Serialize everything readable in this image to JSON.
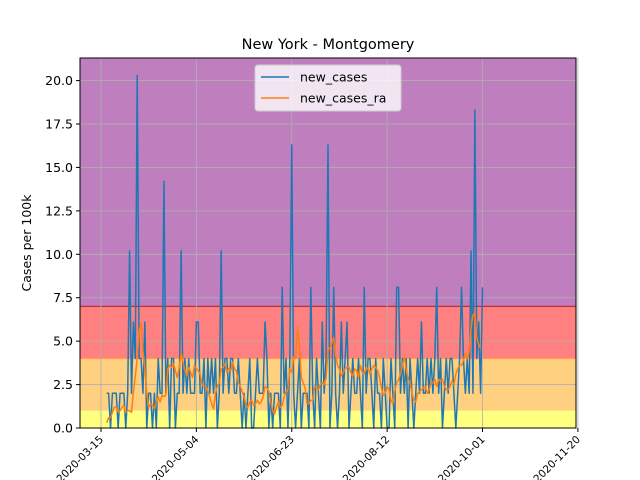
{
  "chart_data": {
    "type": "line",
    "title": "New York - Montgomery",
    "xlabel": "",
    "ylabel": "Cases per 100k",
    "xlim": [
      "2020-03-04",
      "2020-11-19"
    ],
    "ylim": [
      0,
      21.3
    ],
    "grid": true,
    "legend_position": "top-center",
    "xticks": [
      "2020-03-15",
      "2020-05-04",
      "2020-06-23",
      "2020-08-12",
      "2020-10-01",
      "2020-11-20"
    ],
    "yticks": [
      "0.0",
      "2.5",
      "5.0",
      "7.5",
      "10.0",
      "12.5",
      "15.0",
      "17.5",
      "20.0"
    ],
    "bands": [
      {
        "from": 0,
        "to": 1,
        "color": "#ffff80"
      },
      {
        "from": 1,
        "to": 4,
        "color": "#ffd080"
      },
      {
        "from": 4,
        "to": 7,
        "color": "#ff8080"
      },
      {
        "from": 7,
        "to": 21.3,
        "color": "#bf7fbf"
      }
    ],
    "band_lines": [
      {
        "y": 7,
        "color": "#c03030"
      },
      {
        "y": 4,
        "color": "#ff9a50"
      }
    ],
    "series": [
      {
        "name": "new_cases",
        "color": "#1f77b4",
        "x_start": "2020-03-18",
        "step_days": 1,
        "values": [
          2.0,
          2.0,
          0,
          2.0,
          2.0,
          2.0,
          0,
          2.0,
          2.0,
          2.0,
          0,
          2.0,
          10.2,
          2.0,
          6.1,
          4.0,
          20.3,
          4.0,
          4.0,
          2.0,
          6.1,
          0,
          2.0,
          2.0,
          0,
          2.0,
          0,
          4.0,
          2.0,
          2.0,
          14.2,
          2.0,
          4.0,
          0,
          4.0,
          4.0,
          0,
          2.0,
          2.0,
          10.2,
          2.0,
          4.0,
          2.0,
          4.0,
          2.0,
          2.0,
          2.0,
          6.1,
          6.1,
          2.0,
          2.0,
          4.0,
          0,
          4.0,
          2.0,
          4.0,
          2.0,
          4.0,
          0,
          2.0,
          10.2,
          2.0,
          4.0,
          4.0,
          2.0,
          4.0,
          4.0,
          2.0,
          2.0,
          4.0,
          2.0,
          0,
          2.0,
          0,
          2.0,
          4.0,
          0,
          0,
          2.0,
          4.0,
          2.0,
          2.0,
          2.0,
          6.1,
          4.0,
          0,
          2.0,
          0,
          2.0,
          2.0,
          2.0,
          0,
          8.1,
          2.0,
          4.0,
          0,
          4.0,
          16.3,
          2.0,
          0,
          2.0,
          4.0,
          0,
          2.0,
          2.0,
          2.0,
          0,
          8.1,
          2.0,
          0,
          4.0,
          2.0,
          0,
          6.1,
          2.0,
          4.0,
          16.3,
          0,
          2.0,
          8.1,
          2.0,
          0,
          2.0,
          6.1,
          2.0,
          4.0,
          6.1,
          0,
          2.0,
          4.0,
          2.0,
          2.0,
          4.0,
          2.0,
          0,
          8.1,
          2.0,
          4.0,
          4.0,
          2.0,
          0,
          4.0,
          2.0,
          2.0,
          0,
          4.0,
          2.0,
          0,
          0,
          4.0,
          2.0,
          0,
          8.1,
          8.1,
          2.0,
          4.0,
          2.0,
          4.0,
          0,
          4.0,
          2.0,
          0,
          2.0,
          4.0,
          2.0,
          6.1,
          2.0,
          2.0,
          4.0,
          2.0,
          4.0,
          2.0,
          4.0,
          8.1,
          2.0,
          4.0,
          0,
          2.0,
          4.0,
          2.0,
          4.0,
          4.0,
          2.0,
          0,
          2.0,
          4.0,
          8.1,
          4.0,
          2.0,
          4.0,
          2.0,
          10.2,
          2.0,
          18.3,
          4.0,
          6.1,
          2.0,
          8.1
        ]
      },
      {
        "name": "new_cases_ra",
        "color": "#ff7f0e",
        "x_start": "2020-03-18",
        "step_days": 1,
        "values": [
          0.3,
          0.6,
          0.6,
          0.9,
          1.2,
          1.2,
          0.9,
          1.0,
          1.2,
          1.3,
          0.9,
          1.0,
          1.0,
          0.9,
          2.1,
          3.0,
          4.0,
          5.6,
          6.0,
          4.4,
          3.4,
          2.0,
          1.2,
          1.4,
          1.3,
          1.1,
          1.5,
          1.8,
          1.5,
          1.9,
          1.8,
          1.9,
          3.4,
          3.6,
          3.5,
          3.7,
          3.3,
          2.9,
          3.5,
          4.3,
          3.8,
          3.3,
          3.0,
          3.5,
          3.2,
          2.9,
          3.6,
          3.4,
          3.3,
          3.1,
          2.5,
          2.4,
          2.4,
          2.1,
          1.8,
          1.4,
          1.1,
          2.0,
          2.4,
          2.6,
          3.4,
          3.5,
          3.7,
          3.2,
          3.4,
          3.3,
          3.8,
          3.4,
          3.3,
          2.6,
          2.4,
          2.1,
          1.8,
          1.3,
          1.2,
          1.5,
          1.6,
          1.3,
          1.4,
          1.6,
          1.4,
          1.5,
          1.8,
          2.4,
          2.3,
          2.1,
          1.5,
          1.0,
          0.8,
          1.2,
          1.5,
          1.2,
          1.3,
          1.8,
          2.1,
          2.2,
          3.4,
          3.2,
          4.1,
          4.0,
          5.8,
          4.8,
          2.9,
          2.6,
          2.3,
          1.4,
          1.4,
          1.6,
          1.6,
          2.4,
          2.3,
          2.2,
          2.5,
          2.6,
          2.5,
          2.9,
          4.5,
          4.6,
          4.9,
          5.2,
          4.2,
          3.6,
          3.4,
          3.0,
          3.2,
          3.4,
          3.5,
          3.5,
          3.2,
          3.0,
          3.4,
          3.3,
          2.9,
          3.6,
          3.2,
          3.1,
          3.5,
          3.4,
          3.1,
          3.4,
          3.6,
          3.5,
          3.3,
          2.9,
          2.3,
          1.9,
          2.0,
          2.4,
          2.2,
          1.6,
          1.4,
          2.1,
          2.6,
          2.8,
          3.1,
          3.6,
          4.1,
          3.4,
          2.8,
          2.6,
          2.0,
          1.6,
          1.5,
          2.0,
          2.1,
          2.2,
          2.3,
          2.4,
          2.0,
          2.2,
          2.6,
          2.6,
          2.8,
          2.4,
          2.8,
          2.7,
          2.8,
          2.4,
          2.2,
          2.2,
          2.4,
          2.7,
          2.5,
          3.1,
          3.4,
          3.6,
          3.6,
          3.9,
          4.3,
          4.0,
          4.4,
          5.8,
          6.5,
          6.6,
          5.2,
          4.8,
          4.6
        ]
      }
    ]
  }
}
